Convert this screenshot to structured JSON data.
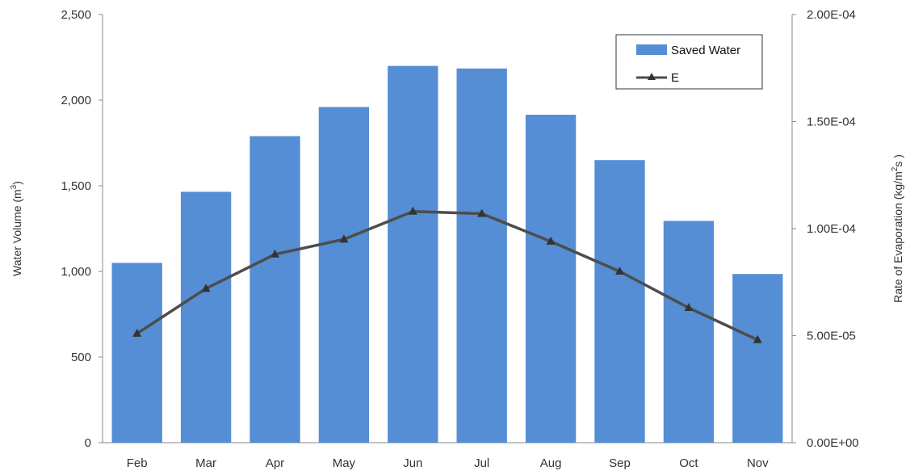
{
  "chart_data": {
    "type": "bar",
    "categories": [
      "Feb",
      "Mar",
      "Apr",
      "May",
      "Jun",
      "Jul",
      "Aug",
      "Sep",
      "Oct",
      "Nov"
    ],
    "series": [
      {
        "name": "Saved Water",
        "type": "bar",
        "axis": "left",
        "color": "#558ed5",
        "values": [
          1050,
          1465,
          1790,
          1960,
          2200,
          2185,
          1915,
          1650,
          1295,
          985
        ]
      },
      {
        "name": "E",
        "type": "line",
        "axis": "right",
        "color": "#4d4d4d",
        "marker": "triangle",
        "values": [
          5.1e-05,
          7.2e-05,
          8.8e-05,
          9.5e-05,
          0.000108,
          0.000107,
          9.4e-05,
          8e-05,
          6.3e-05,
          4.8e-05
        ]
      }
    ],
    "ylabel": "Water Volume (m³)",
    "ylabel_base": "Water Volume (m",
    "ylabel_sup": "3",
    "ylabel_tail": ")",
    "ylim": [
      0,
      2500
    ],
    "yticks": [
      "0",
      "500",
      "1,000",
      "1,500",
      "2,000",
      "2,500"
    ],
    "y2label": "Rate of Evaporation (kg/m²s)",
    "y2label_base": "Rate of Evaporation (kg/m",
    "y2label_sup": "2",
    "y2label_tail": "s )",
    "y2lim": [
      0,
      0.0002
    ],
    "y2ticks": [
      "0.00E+00",
      "5.00E-05",
      "1.00E-04",
      "1.50E-04",
      "2.00E-04"
    ],
    "legend": {
      "position": "top-right",
      "entries": [
        "Saved Water",
        "E"
      ]
    },
    "grid": false
  }
}
